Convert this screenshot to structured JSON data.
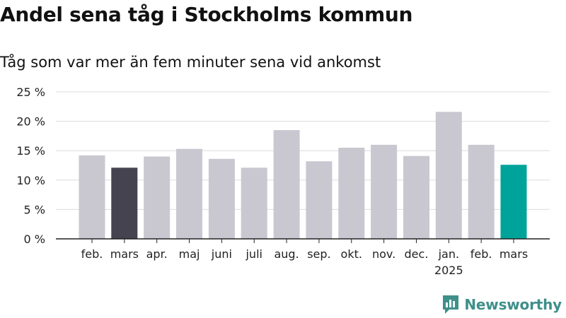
{
  "header": {
    "title": "Andel sena tåg i Stockholms kommun",
    "subtitle": "Tåg som var mer än fem minuter sena vid ankomst"
  },
  "logo": {
    "text": "Newsworthy",
    "icon": "bar-chart-bubble-icon",
    "color": "#3f8f8a"
  },
  "chart_data": {
    "type": "bar",
    "title": "Andel sena tåg i Stockholms kommun",
    "subtitle": "Tåg som var mer än fem minuter sena vid ankomst",
    "categories": [
      "feb.",
      "mars",
      "apr.",
      "maj",
      "juni",
      "juli",
      "aug.",
      "sep.",
      "okt.",
      "nov.",
      "dec.",
      "jan.",
      "feb.",
      "mars"
    ],
    "year_labels": [
      "",
      "",
      "",
      "",
      "",
      "",
      "",
      "",
      "",
      "",
      "",
      "2025",
      "",
      ""
    ],
    "values": [
      14.2,
      12.1,
      14.0,
      15.3,
      13.6,
      12.1,
      18.5,
      13.2,
      15.5,
      16.0,
      14.1,
      21.6,
      16.0,
      12.6
    ],
    "highlight": [
      false,
      true,
      false,
      false,
      false,
      false,
      false,
      false,
      false,
      false,
      false,
      false,
      false,
      true
    ],
    "colors": [
      "#c9c8d1",
      "#44434f",
      "#c9c8d1",
      "#c9c8d1",
      "#c9c8d1",
      "#c9c8d1",
      "#c9c8d1",
      "#c9c8d1",
      "#c9c8d1",
      "#c9c8d1",
      "#c9c8d1",
      "#c9c8d1",
      "#c9c8d1",
      "#00a39a"
    ],
    "ylim": [
      0,
      25
    ],
    "yticks": [
      0,
      5,
      10,
      15,
      20,
      25
    ],
    "ytick_labels": [
      "0 %",
      "5 %",
      "10 %",
      "15 %",
      "20 %",
      "25 %"
    ],
    "xlabel": "",
    "ylabel": "",
    "grid": true,
    "legend": "none"
  }
}
